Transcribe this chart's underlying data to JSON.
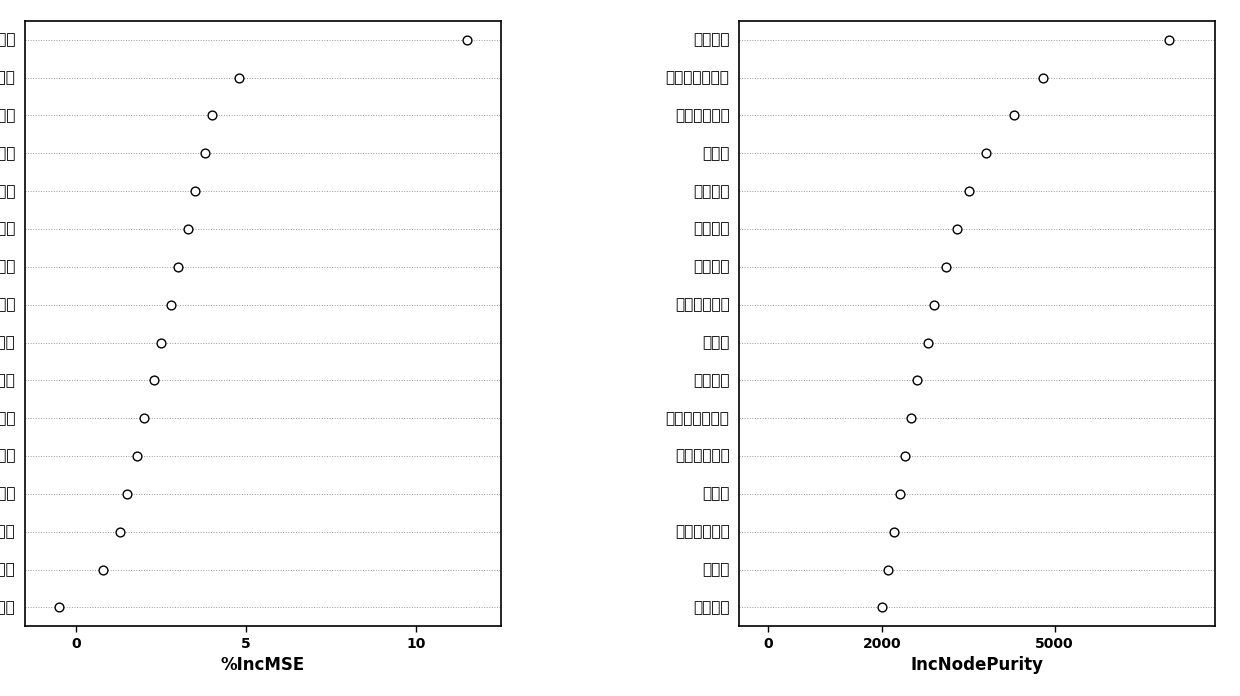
{
  "mse_labels": [
    "隧道埋深",
    "建筑物完好程度",
    "注浆量",
    "推进力",
    "弹性模量",
    "粘聚力",
    "覆跨比",
    "推进速度",
    "相对垂直位置",
    "建筑物自身结构",
    "刀盘转速",
    "内摩擦角",
    "刀盘扭矩",
    "相对水平位置",
    "相对纵向位置",
    "上部土仓压力"
  ],
  "mse_values": [
    11.5,
    4.8,
    4.0,
    3.8,
    3.5,
    3.3,
    3.0,
    2.8,
    2.5,
    2.3,
    2.0,
    1.8,
    1.5,
    1.3,
    0.8,
    -0.5
  ],
  "mse_xlabel": "%IncMSE",
  "mse_xlim": [
    -1.5,
    12.5
  ],
  "mse_xticks": [
    0,
    5,
    10
  ],
  "purity_labels": [
    "隧道埋深",
    "建筑物完好程度",
    "相对水平位置",
    "覆跨比",
    "刀盘转速",
    "弹性模量",
    "推进速度",
    "相对纵向位置",
    "注浆量",
    "刀盘扭矩",
    "建筑物自身结构",
    "相对垂直位置",
    "推进力",
    "上部土仓压力",
    "粘聚力",
    "内摩擦角"
  ],
  "purity_values": [
    7000,
    4800,
    4300,
    3800,
    3500,
    3300,
    3100,
    2900,
    2800,
    2600,
    2500,
    2400,
    2300,
    2200,
    2100,
    2000
  ],
  "purity_xlabel": "IncNodePurity",
  "purity_xlim": [
    -500,
    7800
  ],
  "purity_xticks": [
    0,
    2000,
    5000
  ],
  "dot_color": "white",
  "dot_edgecolor": "black",
  "dot_size": 40,
  "dot_linewidth": 1.0,
  "bg_color": "white",
  "spine_color": "black",
  "grid_color": "#999999",
  "label_fontsize": 11,
  "tick_fontsize": 10,
  "xlabel_fontsize": 12
}
